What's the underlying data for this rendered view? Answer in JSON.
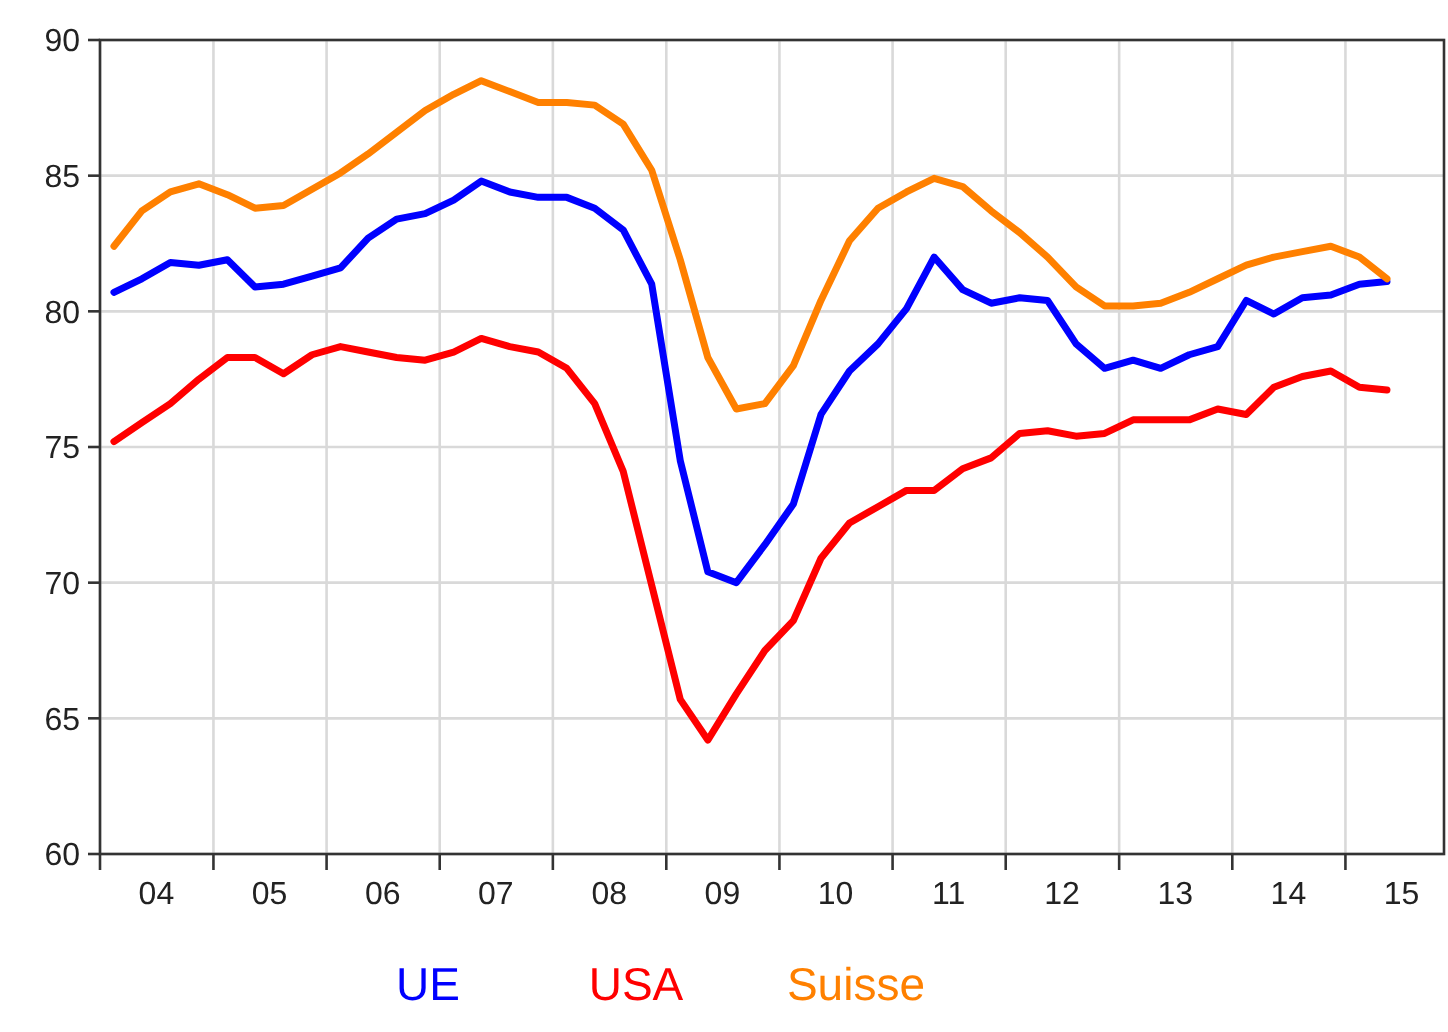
{
  "chart_data": {
    "type": "line",
    "x": [
      "2004-02-15",
      "2004-05-15",
      "2004-08-15",
      "2004-11-15",
      "2005-02-15",
      "2005-05-15",
      "2005-08-15",
      "2005-11-15",
      "2006-02-15",
      "2006-05-15",
      "2006-08-15",
      "2006-11-15",
      "2007-02-15",
      "2007-05-15",
      "2007-08-15",
      "2007-11-15",
      "2008-02-15",
      "2008-05-15",
      "2008-08-15",
      "2008-11-15",
      "2009-02-15",
      "2009-05-15",
      "2009-08-15",
      "2009-11-15",
      "2010-02-15",
      "2010-05-15",
      "2010-08-15",
      "2010-11-15",
      "2011-02-15",
      "2011-05-15",
      "2011-08-15",
      "2011-11-15",
      "2012-02-15",
      "2012-05-15",
      "2012-08-15",
      "2012-11-15",
      "2013-02-15",
      "2013-05-15",
      "2013-08-15",
      "2013-11-15",
      "2014-02-15",
      "2014-05-15",
      "2014-08-15",
      "2014-11-15",
      "2015-02-15",
      "2015-05-15"
    ],
    "series": [
      {
        "name": "UE",
        "color": "#0000ff",
        "values": [
          80.7,
          81.2,
          81.8,
          81.7,
          81.9,
          80.9,
          81.0,
          81.3,
          81.6,
          82.7,
          83.4,
          83.6,
          84.1,
          84.8,
          84.4,
          84.2,
          84.2,
          83.8,
          83.0,
          81.0,
          74.5,
          70.4,
          70.0,
          71.4,
          72.9,
          76.2,
          77.8,
          78.8,
          80.1,
          82.0,
          80.8,
          80.3,
          80.5,
          80.4,
          78.8,
          77.9,
          78.2,
          77.9,
          78.4,
          78.7,
          80.4,
          79.9,
          80.5,
          80.6,
          81.0,
          81.1
        ]
      },
      {
        "name": "USA",
        "color": "#ff0000",
        "values": [
          75.2,
          75.9,
          76.6,
          77.5,
          78.3,
          78.3,
          77.7,
          78.4,
          78.7,
          78.5,
          78.3,
          78.2,
          78.5,
          79.0,
          78.7,
          78.5,
          77.9,
          76.6,
          74.1,
          69.9,
          65.7,
          64.2,
          65.9,
          67.5,
          68.6,
          70.9,
          72.2,
          72.8,
          73.4,
          73.4,
          74.2,
          74.6,
          75.5,
          75.6,
          75.4,
          75.5,
          76.0,
          76.0,
          76.0,
          76.4,
          76.2,
          77.2,
          77.6,
          77.8,
          77.2,
          77.1
        ]
      },
      {
        "name": "Suisse",
        "color": "#ff8000",
        "values": [
          82.4,
          83.7,
          84.4,
          84.7,
          84.3,
          83.8,
          83.9,
          84.5,
          85.1,
          85.8,
          86.6,
          87.4,
          88.0,
          88.5,
          88.1,
          87.7,
          87.7,
          87.6,
          86.9,
          85.2,
          81.9,
          78.3,
          76.4,
          76.6,
          78.0,
          80.4,
          82.6,
          83.8,
          84.4,
          84.9,
          84.6,
          83.7,
          82.9,
          82.0,
          80.9,
          80.2,
          80.2,
          80.3,
          80.7,
          81.2,
          81.7,
          82.0,
          82.2,
          82.4,
          82.0,
          81.2
        ]
      }
    ],
    "xlim": [
      "2004-01-01",
      "2015-11-15"
    ],
    "xticks": [
      {
        "value": "2004-01-01",
        "label": null
      },
      {
        "value": "2004-07-01",
        "label": "04"
      },
      {
        "value": "2005-01-01",
        "label": null
      },
      {
        "value": "2005-07-01",
        "label": "05"
      },
      {
        "value": "2006-01-01",
        "label": null
      },
      {
        "value": "2006-07-01",
        "label": "06"
      },
      {
        "value": "2007-01-01",
        "label": null
      },
      {
        "value": "2007-07-01",
        "label": "07"
      },
      {
        "value": "2008-01-01",
        "label": null
      },
      {
        "value": "2008-07-01",
        "label": "08"
      },
      {
        "value": "2009-01-01",
        "label": null
      },
      {
        "value": "2009-07-01",
        "label": "09"
      },
      {
        "value": "2010-01-01",
        "label": null
      },
      {
        "value": "2010-07-01",
        "label": "10"
      },
      {
        "value": "2011-01-01",
        "label": null
      },
      {
        "value": "2011-07-01",
        "label": "11"
      },
      {
        "value": "2012-01-01",
        "label": null
      },
      {
        "value": "2012-07-01",
        "label": "12"
      },
      {
        "value": "2013-01-01",
        "label": null
      },
      {
        "value": "2013-07-01",
        "label": "13"
      },
      {
        "value": "2014-01-01",
        "label": null
      },
      {
        "value": "2014-07-01",
        "label": "14"
      },
      {
        "value": "2015-01-01",
        "label": null
      },
      {
        "value": "2015-07-01",
        "label": "15"
      }
    ],
    "ylim": [
      60,
      90
    ],
    "yticks": [
      60,
      65,
      70,
      75,
      80,
      85,
      90
    ],
    "grid": true,
    "legend": "bottom",
    "marker": "none",
    "line_style": "solid"
  }
}
